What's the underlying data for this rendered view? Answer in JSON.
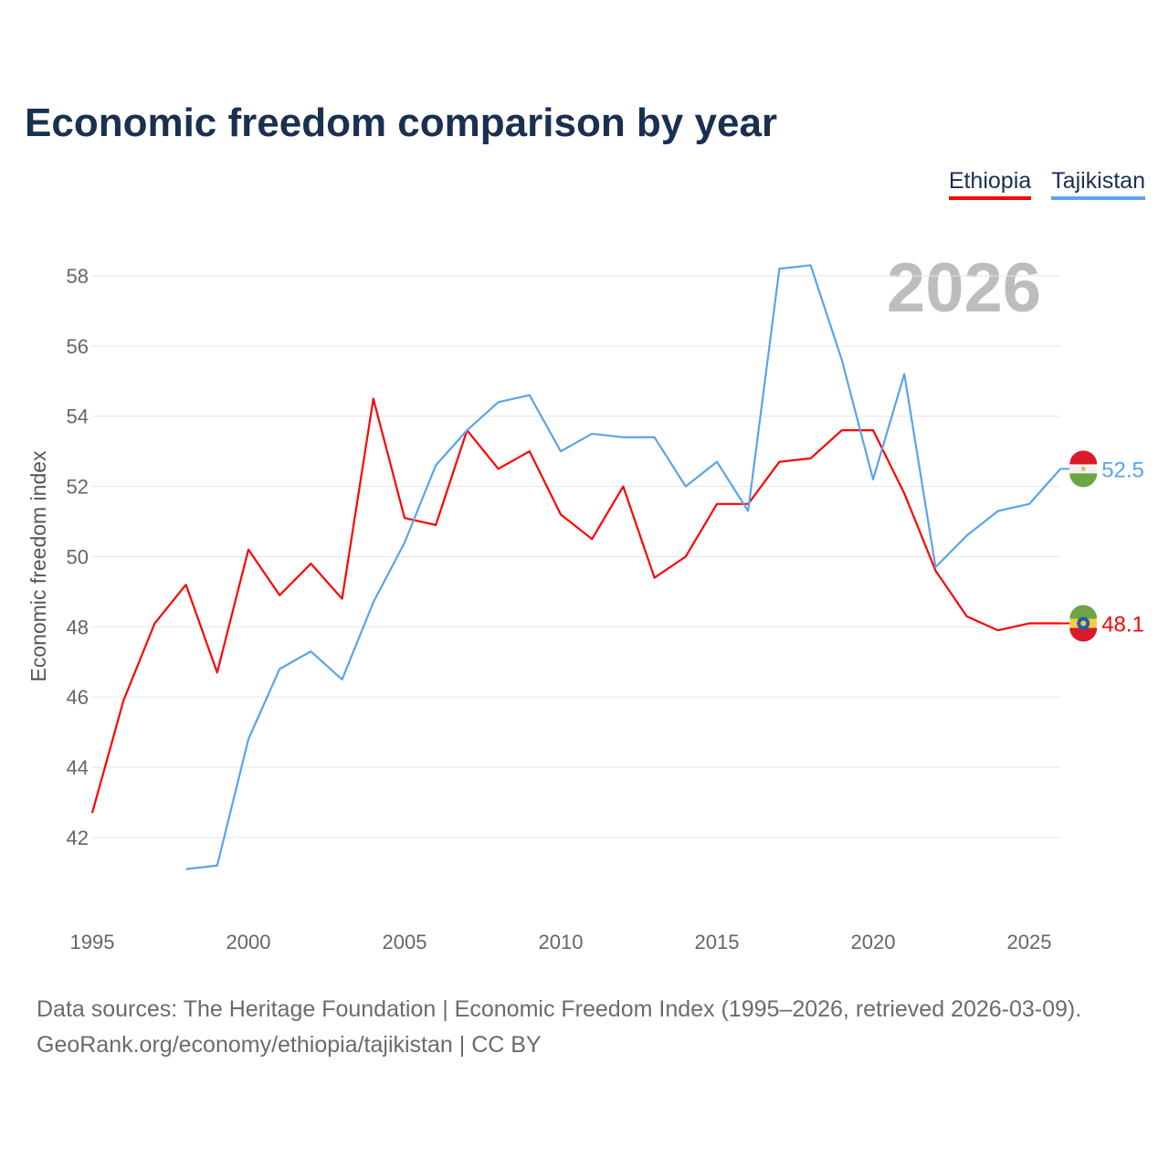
{
  "title": "Economic freedom comparison by year",
  "legend": [
    {
      "name": "Ethiopia",
      "color": "#ff0000"
    },
    {
      "name": "Tajikistan",
      "color": "#5ba4e8"
    }
  ],
  "watermark_year": "2026",
  "sources": [
    "Data sources: The Heritage Foundation | Economic Freedom Index (1995–2026, retrieved 2026-03-09).",
    "GeoRank.org/economy/ethiopia/tajikistan | CC BY"
  ],
  "chart_data": {
    "type": "line",
    "title": "Economic freedom comparison by year",
    "xlabel": "",
    "ylabel": "Economic freedom index",
    "xlim": [
      1995,
      2026
    ],
    "ylim": [
      42,
      58
    ],
    "xticks": [
      1995,
      2000,
      2005,
      2010,
      2015,
      2020,
      2025
    ],
    "yticks": [
      42,
      44,
      46,
      48,
      50,
      52,
      54,
      56,
      58
    ],
    "grid": true,
    "legend_position": "top-right",
    "series": [
      {
        "name": "Ethiopia",
        "color": "#ff0000",
        "end_label": "48.1",
        "x": [
          1995,
          1996,
          1997,
          1998,
          1999,
          2000,
          2001,
          2002,
          2003,
          2004,
          2005,
          2006,
          2007,
          2008,
          2009,
          2010,
          2011,
          2012,
          2013,
          2014,
          2015,
          2016,
          2017,
          2018,
          2019,
          2020,
          2021,
          2022,
          2023,
          2024,
          2025,
          2026
        ],
        "values": [
          42.7,
          45.9,
          48.1,
          49.2,
          46.7,
          50.2,
          48.9,
          49.8,
          48.8,
          54.5,
          51.1,
          50.9,
          53.6,
          52.5,
          53.0,
          51.2,
          50.5,
          52.0,
          49.4,
          50.0,
          51.5,
          51.5,
          52.7,
          52.8,
          53.6,
          53.6,
          51.8,
          49.6,
          48.3,
          47.9,
          48.1,
          48.1
        ]
      },
      {
        "name": "Tajikistan",
        "color": "#5ba4e8",
        "end_label": "52.5",
        "x": [
          1998,
          1999,
          2000,
          2001,
          2002,
          2003,
          2004,
          2005,
          2006,
          2007,
          2008,
          2009,
          2010,
          2011,
          2012,
          2013,
          2014,
          2015,
          2016,
          2017,
          2018,
          2019,
          2020,
          2021,
          2022,
          2023,
          2024,
          2025,
          2026
        ],
        "values": [
          41.1,
          41.2,
          44.8,
          46.8,
          47.3,
          46.5,
          48.7,
          50.4,
          52.6,
          53.6,
          54.4,
          54.6,
          53.0,
          53.5,
          53.4,
          53.4,
          52.0,
          52.7,
          51.3,
          58.2,
          58.3,
          55.6,
          52.2,
          55.2,
          49.7,
          50.6,
          51.3,
          51.5,
          52.5
        ]
      }
    ]
  }
}
